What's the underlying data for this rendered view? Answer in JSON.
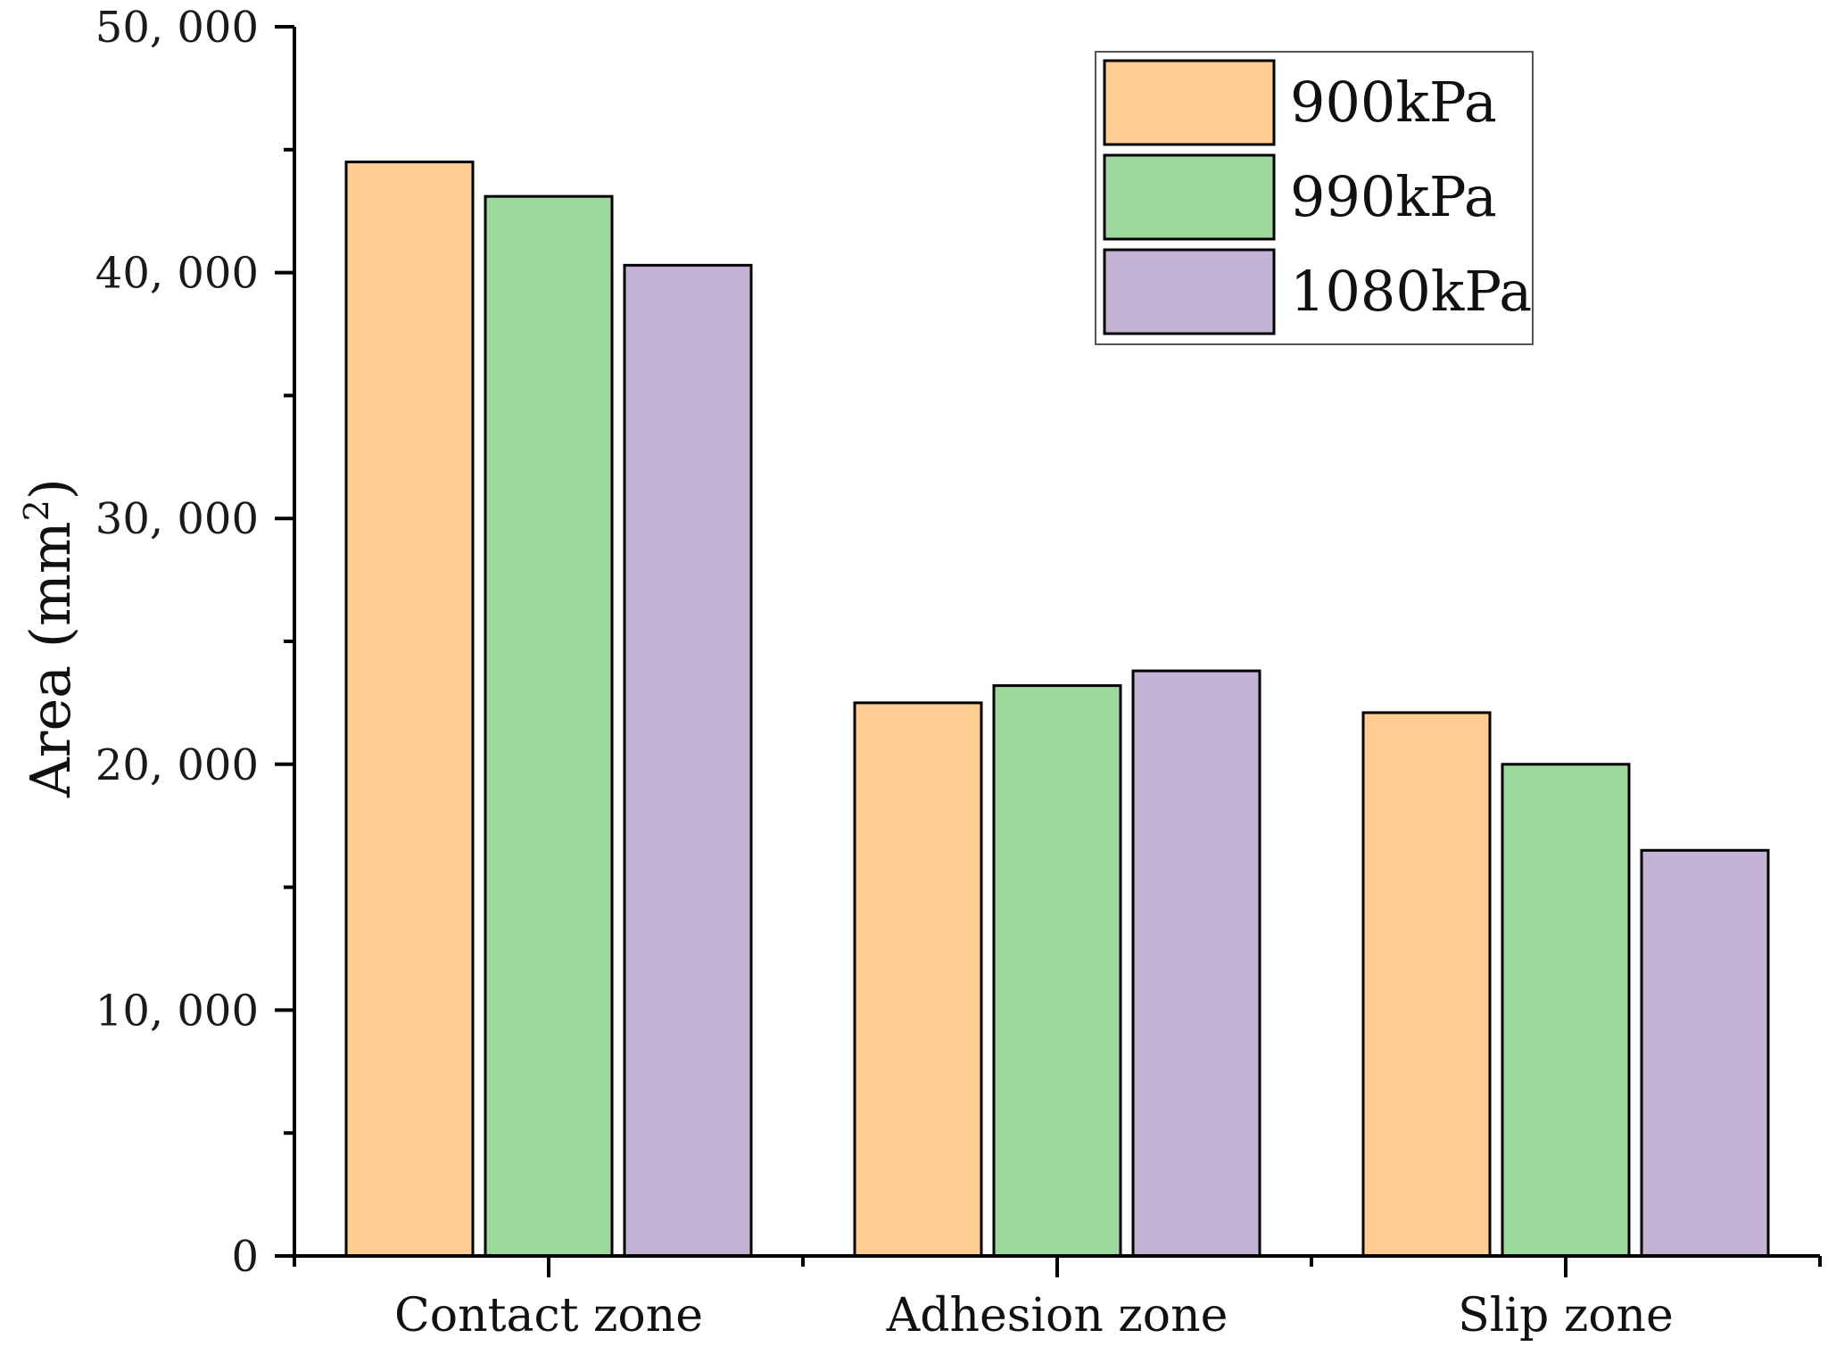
{
  "chart_data": {
    "type": "bar",
    "categories": [
      "Contact zone",
      "Adhesion zone",
      "Slip zone"
    ],
    "series": [
      {
        "name": "900kPa",
        "color": "#FFCC92",
        "values": [
          44500,
          22500,
          22100
        ]
      },
      {
        "name": "990kPa",
        "color": "#9DD89C",
        "values": [
          43100,
          23200,
          20000
        ]
      },
      {
        "name": "1080kPa",
        "color": "#C5B3D6",
        "values": [
          40300,
          23800,
          16500
        ]
      }
    ],
    "ylabel_base": "Area (mm",
    "ylabel_sup": "2",
    "ylabel_close": ")",
    "ylim": [
      0,
      50000
    ],
    "yticks": [
      0,
      10000,
      20000,
      30000,
      40000,
      50000
    ],
    "ytick_labels": [
      "0",
      "10, 000",
      "20, 000",
      "30, 000",
      "40, 000",
      "50, 000"
    ],
    "legend_position": "top-right",
    "grid": false
  }
}
